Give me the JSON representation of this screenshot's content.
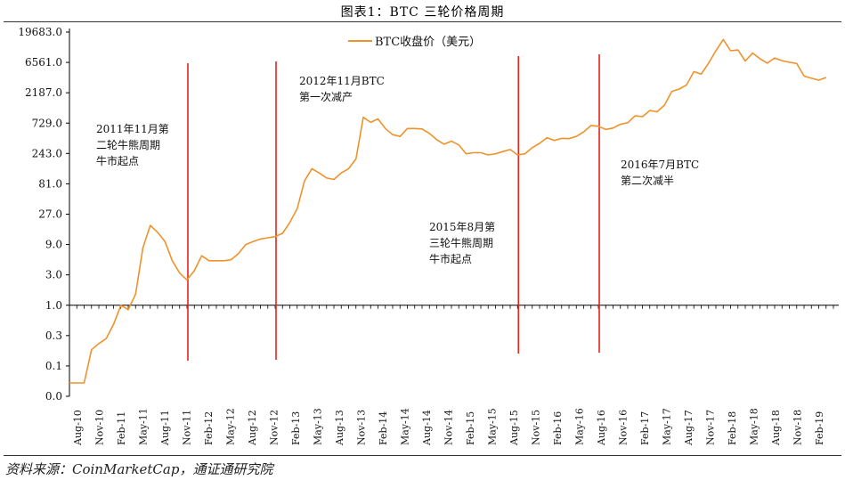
{
  "figure": {
    "title": "图表1：BTC 三轮价格周期",
    "source": "资料来源：CoinMarketCap，通证通研究院"
  },
  "colors": {
    "series": "#F0922B",
    "marker_line": "#E8231E",
    "axis": "#000000"
  },
  "chart_data": {
    "type": "line",
    "title": "图表1：BTC 三轮价格周期",
    "xlabel": "",
    "ylabel": "",
    "y_scale": "log3",
    "y_ticks": [
      "0.0",
      "0.1",
      "0.3",
      "1.0",
      "3.0",
      "9.0",
      "27.0",
      "81.0",
      "243.0",
      "729.0",
      "2187.0",
      "6561.0",
      "19683.0"
    ],
    "x_ticks": [
      "Aug-10",
      "Nov-10",
      "Feb-11",
      "May-11",
      "Aug-11",
      "Nov-11",
      "Feb-12",
      "May-12",
      "Aug-12",
      "Nov-12",
      "Feb-13",
      "May-13",
      "Aug-13",
      "Nov-13",
      "Feb-14",
      "May-14",
      "Aug-14",
      "Nov-14",
      "Feb-15",
      "May-15",
      "Aug-15",
      "Nov-15",
      "Feb-16",
      "May-16",
      "Aug-16",
      "Nov-16",
      "Feb-17",
      "May-17",
      "Aug-17",
      "Nov-17",
      "Feb-18",
      "May-18",
      "Aug-18",
      "Nov-18",
      "Feb-19"
    ],
    "legend": {
      "label": "BTC收盘价（美元）",
      "placement": "top-center"
    },
    "series": [
      {
        "name": "BTC收盘价（美元）",
        "x": [
          "2010-07",
          "2010-08",
          "2010-09",
          "2010-10",
          "2010-11",
          "2010-12",
          "2011-01",
          "2011-02",
          "2011-03",
          "2011-04",
          "2011-05",
          "2011-06",
          "2011-07",
          "2011-08",
          "2011-09",
          "2011-10",
          "2011-11",
          "2011-12",
          "2012-01",
          "2012-02",
          "2012-03",
          "2012-04",
          "2012-05",
          "2012-06",
          "2012-07",
          "2012-08",
          "2012-09",
          "2012-10",
          "2012-11",
          "2012-12",
          "2013-01",
          "2013-02",
          "2013-03",
          "2013-04",
          "2013-05",
          "2013-06",
          "2013-07",
          "2013-08",
          "2013-09",
          "2013-10",
          "2013-11",
          "2013-12",
          "2014-01",
          "2014-02",
          "2014-03",
          "2014-04",
          "2014-05",
          "2014-06",
          "2014-07",
          "2014-08",
          "2014-09",
          "2014-10",
          "2014-11",
          "2014-12",
          "2015-01",
          "2015-02",
          "2015-03",
          "2015-04",
          "2015-05",
          "2015-06",
          "2015-07",
          "2015-08",
          "2015-09",
          "2015-10",
          "2015-11",
          "2015-12",
          "2016-01",
          "2016-02",
          "2016-03",
          "2016-04",
          "2016-05",
          "2016-06",
          "2016-07",
          "2016-08",
          "2016-09",
          "2016-10",
          "2016-11",
          "2016-12",
          "2017-01",
          "2017-02",
          "2017-03",
          "2017-04",
          "2017-05",
          "2017-06",
          "2017-07",
          "2017-08",
          "2017-09",
          "2017-10",
          "2017-11",
          "2017-12",
          "2018-01",
          "2018-02",
          "2018-03",
          "2018-04",
          "2018-05",
          "2018-06",
          "2018-07",
          "2018-08",
          "2018-09",
          "2018-10",
          "2018-11",
          "2018-12",
          "2019-01",
          "2019-02"
        ],
        "values": [
          0.06,
          0.06,
          0.06,
          0.2,
          0.25,
          0.3,
          0.5,
          1.0,
          0.85,
          1.5,
          8.0,
          18.0,
          14.0,
          10.0,
          5.0,
          3.2,
          2.5,
          3.5,
          6.0,
          5.0,
          5.0,
          5.0,
          5.2,
          6.5,
          9.0,
          10.0,
          11.0,
          11.5,
          12.0,
          13.5,
          20.0,
          33.0,
          90.0,
          140.0,
          120.0,
          100.0,
          95.0,
          120.0,
          140.0,
          200.0,
          900.0,
          750.0,
          850.0,
          600.0,
          480.0,
          450.0,
          600.0,
          600.0,
          590.0,
          500.0,
          400.0,
          340.0,
          380.0,
          330.0,
          240.0,
          250.0,
          250.0,
          230.0,
          240.0,
          260.0,
          280.0,
          230.0,
          240.0,
          300.0,
          350.0,
          430.0,
          390.0,
          420.0,
          415.0,
          450.0,
          530.0,
          670.0,
          650.0,
          580.0,
          610.0,
          700.0,
          740.0,
          950.0,
          920.0,
          1150.0,
          1100.0,
          1400.0,
          2300.0,
          2500.0,
          2900.0,
          4700.0,
          4300.0,
          6400.0,
          10000.0,
          15000.0,
          10000.0,
          10300.0,
          6900.0,
          9200.0,
          7500.0,
          6400.0,
          7700.0,
          7000.0,
          6600.0,
          6300.0,
          4000.0,
          3700.0,
          3450.0,
          3800.0
        ]
      }
    ],
    "annotations": [
      {
        "date": "2011-11",
        "lines": [
          "2011年11月第",
          "二轮牛熊周期",
          "牛市起点"
        ]
      },
      {
        "date": "2012-11",
        "lines": [
          "2012年11月BTC",
          "第一次减产"
        ]
      },
      {
        "date": "2015-08",
        "lines": [
          "2015年8月第",
          "三轮牛熊周期",
          "牛市起点"
        ]
      },
      {
        "date": "2016-07",
        "lines": [
          "2016年7月BTC",
          "第二次减半"
        ]
      }
    ]
  }
}
